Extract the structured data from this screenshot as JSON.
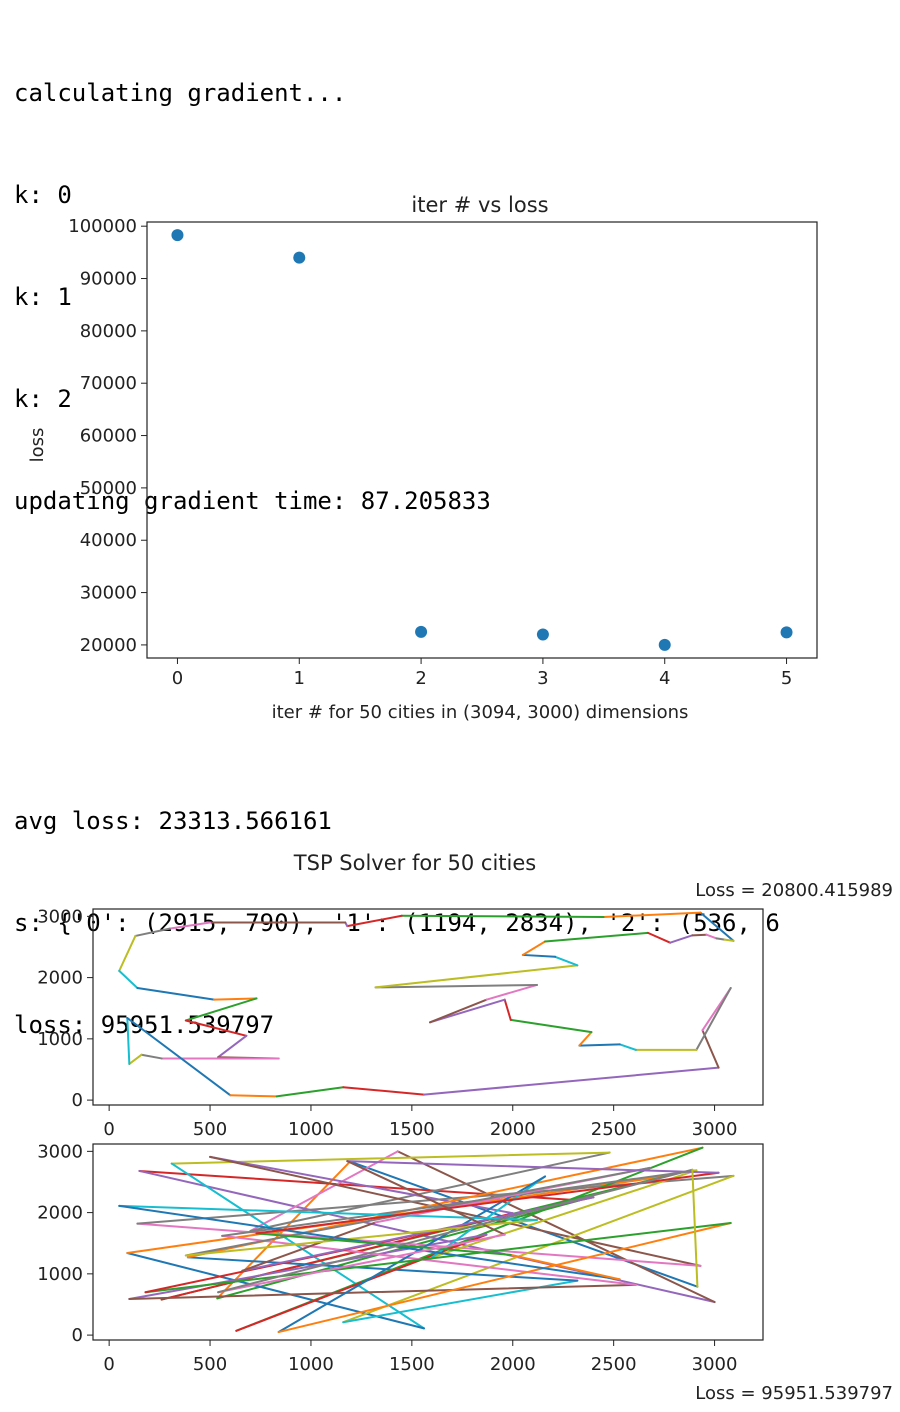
{
  "output_lines_top": [
    "calculating gradient...",
    "k: 0",
    "k: 1",
    "k: 2",
    "updating gradient time: 87.205833"
  ],
  "output_lines_mid": [
    "avg loss: 23313.566161",
    "s: {'0': (2915, 790), '1': (1194, 2834), '2': (536, 6",
    "loss: 95951.539797"
  ],
  "colors": {
    "scatter": "#1f77b4",
    "cycle": [
      "#1f77b4",
      "#ff7f0e",
      "#2ca02c",
      "#d62728",
      "#9467bd",
      "#8c564b",
      "#e377c2",
      "#7f7f7f",
      "#bcbd22",
      "#17becf"
    ]
  },
  "chart_data": [
    {
      "type": "scatter",
      "title": "iter # vs loss",
      "xlabel": "iter # for 50 cities in (3094, 3000) dimensions",
      "ylabel": "loss",
      "x": [
        0,
        1,
        2,
        3,
        4,
        5
      ],
      "y": [
        98300,
        94000,
        22500,
        22000,
        20000,
        22400
      ],
      "xlim": [
        -0.25,
        5.25
      ],
      "ylim": [
        17500,
        100800
      ],
      "xticks": [
        "0",
        "1",
        "2",
        "3",
        "4",
        "5"
      ],
      "yticks": [
        "20000",
        "30000",
        "40000",
        "50000",
        "60000",
        "70000",
        "80000",
        "90000",
        "100000"
      ],
      "grid": false
    },
    {
      "type": "line",
      "title": "TSP Solver for 50 cities",
      "annotation": "Loss = 20800.415989",
      "xlim": [
        -80,
        3240
      ],
      "ylim": [
        -80,
        3120
      ],
      "xticks": [
        "0",
        "500",
        "1000",
        "1500",
        "2000",
        "2500",
        "3000"
      ],
      "yticks": [
        "0",
        "1000",
        "2000",
        "3000"
      ],
      "route": [
        [
          3094,
          2600
        ],
        [
          2930,
          3060
        ],
        [
          2450,
          2990
        ],
        [
          1450,
          3010
        ],
        [
          1180,
          2840
        ],
        [
          1170,
          2900
        ],
        [
          500,
          2900
        ],
        [
          300,
          2800
        ],
        [
          130,
          2680
        ],
        [
          50,
          2110
        ],
        [
          140,
          1830
        ],
        [
          520,
          1640
        ],
        [
          730,
          1660
        ],
        [
          380,
          1300
        ],
        [
          680,
          1050
        ],
        [
          540,
          700
        ],
        [
          840,
          680
        ],
        [
          260,
          680
        ],
        [
          160,
          740
        ],
        [
          100,
          590
        ],
        [
          90,
          1340
        ],
        [
          600,
          80
        ],
        [
          830,
          60
        ],
        [
          1160,
          210
        ],
        [
          1560,
          90
        ],
        [
          3020,
          530
        ],
        [
          2940,
          1140
        ],
        [
          3080,
          1830
        ],
        [
          2910,
          820
        ],
        [
          2610,
          820
        ],
        [
          2530,
          910
        ],
        [
          2330,
          890
        ],
        [
          2390,
          1110
        ],
        [
          1990,
          1310
        ],
        [
          1960,
          1640
        ],
        [
          1590,
          1270
        ],
        [
          1870,
          1640
        ],
        [
          2120,
          1880
        ],
        [
          1320,
          1840
        ],
        [
          2320,
          2200
        ],
        [
          2210,
          2340
        ],
        [
          2050,
          2370
        ],
        [
          2160,
          2590
        ],
        [
          2670,
          2730
        ],
        [
          2780,
          2570
        ],
        [
          2890,
          2690
        ],
        [
          2960,
          2700
        ],
        [
          3010,
          2640
        ],
        [
          3050,
          2620
        ],
        [
          3094,
          2600
        ]
      ]
    },
    {
      "type": "line",
      "annotation": "Loss = 95951.539797",
      "xlim": [
        -80,
        3240
      ],
      "ylim": [
        -80,
        3120
      ],
      "xticks": [
        "0",
        "500",
        "1000",
        "1500",
        "2000",
        "2500",
        "3000"
      ],
      "yticks": [
        "0",
        "1000",
        "2000",
        "3000"
      ],
      "route": [
        [
          2915,
          790
        ],
        [
          1194,
          2834
        ],
        [
          536,
          600
        ],
        [
          2330,
          2200
        ],
        [
          150,
          2680
        ],
        [
          3000,
          540
        ],
        [
          1430,
          3000
        ],
        [
          700,
          1700
        ],
        [
          2480,
          2980
        ],
        [
          310,
          2800
        ],
        [
          1560,
          110
        ],
        [
          90,
          1340
        ],
        [
          2770,
          2600
        ],
        [
          260,
          580
        ],
        [
          2000,
          1990
        ],
        [
          500,
          2910
        ],
        [
          2930,
          1130
        ],
        [
          140,
          1820
        ],
        [
          3094,
          2600
        ],
        [
          1160,
          210
        ],
        [
          2320,
          890
        ],
        [
          390,
          1270
        ],
        [
          2940,
          3060
        ],
        [
          630,
          70
        ],
        [
          1870,
          1640
        ],
        [
          100,
          590
        ],
        [
          2610,
          820
        ],
        [
          560,
          1620
        ],
        [
          2910,
          2690
        ],
        [
          1600,
          1270
        ],
        [
          2160,
          2590
        ],
        [
          840,
          50
        ],
        [
          3080,
          1830
        ],
        [
          180,
          700
        ],
        [
          2400,
          2250
        ],
        [
          660,
          1050
        ],
        [
          1320,
          1840
        ],
        [
          2680,
          2730
        ],
        [
          380,
          1300
        ],
        [
          2120,
          1880
        ],
        [
          50,
          2110
        ],
        [
          2530,
          910
        ],
        [
          1990,
          1310
        ],
        [
          730,
          1660
        ],
        [
          3020,
          2650
        ],
        [
          1180,
          2840
        ],
        [
          1960,
          1640
        ],
        [
          540,
          700
        ],
        [
          2890,
          2700
        ],
        [
          2915,
          790
        ]
      ]
    }
  ]
}
